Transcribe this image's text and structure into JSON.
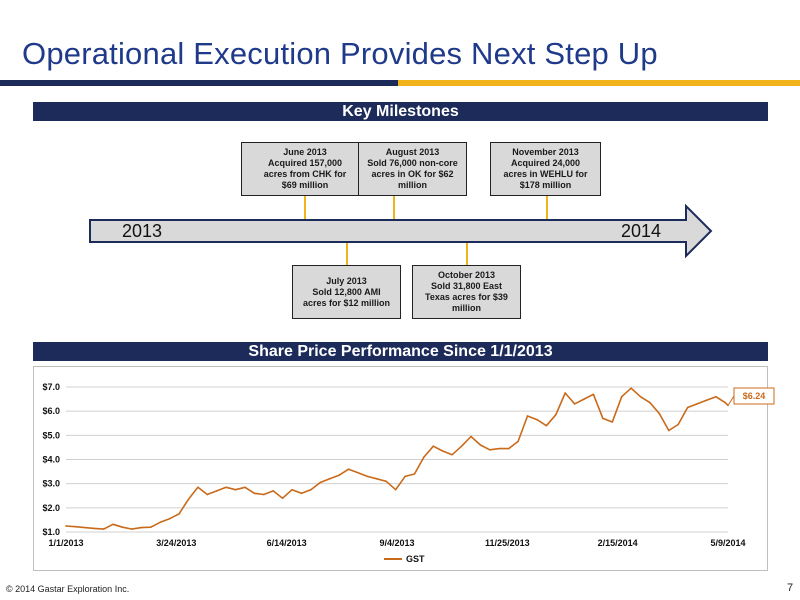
{
  "slide": {
    "title": "Operational Execution Provides Next Step Up",
    "footer": "© 2014 Gastar Exploration Inc.",
    "page_number": "7"
  },
  "colors": {
    "navy": "#1c2b59",
    "gold": "#f1b31c",
    "title_blue": "#1f3a8a",
    "series": "#c96a1b"
  },
  "milestones_section": {
    "header": "Key Milestones",
    "start_year": "2013",
    "end_year": "2014",
    "items": [
      {
        "lines": [
          "June 2013",
          "Acquired 157,000",
          "acres from CHK for",
          "$69 million"
        ]
      },
      {
        "lines": [
          "August 2013",
          "Sold 76,000 non-core",
          "acres in OK for $62",
          "million"
        ]
      },
      {
        "lines": [
          "November 2013",
          "Acquired 24,000",
          "acres in WEHLU for",
          "$178 million"
        ]
      },
      {
        "lines": [
          "July 2013",
          "Sold 12,800 AMI",
          "acres for $12 million"
        ]
      },
      {
        "lines": [
          "October 2013",
          "Sold 31,800 East",
          "Texas acres for $39",
          "million"
        ]
      }
    ]
  },
  "chart_section": {
    "header": "Share Price Performance Since 1/1/2013",
    "last_value_label": "$6.24"
  },
  "chart_data": {
    "type": "line",
    "title": "",
    "xlabel": "",
    "ylabel": "",
    "ylim": [
      1.0,
      7.0
    ],
    "y_ticks": [
      "$1.0",
      "$2.0",
      "$3.0",
      "$4.0",
      "$5.0",
      "$6.0",
      "$7.0"
    ],
    "x_tick_labels": [
      "1/1/2013",
      "3/24/2013",
      "6/14/2013",
      "9/4/2013",
      "11/25/2013",
      "2/15/2014",
      "5/9/2014"
    ],
    "grid": true,
    "legend": "bottom-center",
    "series": [
      {
        "name": "GST",
        "x": [
          "2013-01-02",
          "2013-01-09",
          "2013-01-16",
          "2013-01-23",
          "2013-01-30",
          "2013-02-06",
          "2013-02-13",
          "2013-02-20",
          "2013-02-27",
          "2013-03-06",
          "2013-03-13",
          "2013-03-20",
          "2013-03-27",
          "2013-04-03",
          "2013-04-10",
          "2013-04-17",
          "2013-04-24",
          "2013-05-01",
          "2013-05-08",
          "2013-05-15",
          "2013-05-22",
          "2013-05-29",
          "2013-06-05",
          "2013-06-12",
          "2013-06-19",
          "2013-06-26",
          "2013-07-03",
          "2013-07-10",
          "2013-07-17",
          "2013-07-24",
          "2013-07-31",
          "2013-08-07",
          "2013-08-14",
          "2013-08-21",
          "2013-08-28",
          "2013-09-04",
          "2013-09-11",
          "2013-09-18",
          "2013-09-25",
          "2013-10-02",
          "2013-10-09",
          "2013-10-16",
          "2013-10-23",
          "2013-10-30",
          "2013-11-06",
          "2013-11-13",
          "2013-11-20",
          "2013-11-27",
          "2013-12-04",
          "2013-12-11",
          "2013-12-18",
          "2013-12-25",
          "2014-01-01",
          "2014-01-08",
          "2014-01-15",
          "2014-01-22",
          "2014-01-29",
          "2014-02-05",
          "2014-02-12",
          "2014-02-19",
          "2014-02-26",
          "2014-03-05",
          "2014-03-12",
          "2014-03-19",
          "2014-03-26",
          "2014-04-02",
          "2014-04-09",
          "2014-04-16",
          "2014-04-23",
          "2014-04-30",
          "2014-05-07",
          "2014-05-09"
        ],
        "values": [
          1.25,
          1.22,
          1.18,
          1.15,
          1.12,
          1.32,
          1.2,
          1.12,
          1.18,
          1.2,
          1.4,
          1.55,
          1.75,
          2.35,
          2.85,
          2.55,
          2.7,
          2.85,
          2.75,
          2.85,
          2.6,
          2.55,
          2.7,
          2.4,
          2.75,
          2.6,
          2.75,
          3.05,
          3.2,
          3.35,
          3.6,
          3.45,
          3.3,
          3.2,
          3.1,
          2.75,
          3.3,
          3.4,
          4.1,
          4.55,
          4.35,
          4.2,
          4.55,
          4.95,
          4.6,
          4.4,
          4.45,
          4.45,
          4.75,
          5.8,
          5.65,
          5.4,
          5.85,
          6.75,
          6.3,
          6.5,
          6.7,
          5.7,
          5.55,
          6.6,
          6.95,
          6.6,
          6.35,
          5.9,
          5.2,
          5.45,
          6.15,
          6.3,
          6.45,
          6.6,
          6.35,
          6.24
        ]
      }
    ]
  }
}
